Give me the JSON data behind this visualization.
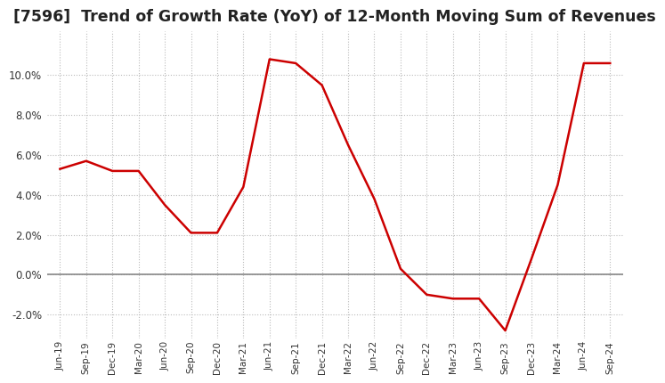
{
  "title": "[7596]  Trend of Growth Rate (YoY) of 12-Month Moving Sum of Revenues",
  "title_fontsize": 12.5,
  "line_color": "#cc0000",
  "background_color": "#ffffff",
  "grid_color": "#bbbbbb",
  "ylim": [
    -3.2,
    12.2
  ],
  "yticks": [
    -2.0,
    0.0,
    2.0,
    4.0,
    6.0,
    8.0,
    10.0
  ],
  "x_labels": [
    "Jun-19",
    "Sep-19",
    "Dec-19",
    "Mar-20",
    "Jun-20",
    "Sep-20",
    "Dec-20",
    "Mar-21",
    "Jun-21",
    "Sep-21",
    "Dec-21",
    "Mar-22",
    "Jun-22",
    "Sep-22",
    "Dec-22",
    "Mar-23",
    "Jun-23",
    "Sep-23",
    "Dec-23",
    "Mar-24",
    "Jun-24",
    "Sep-24"
  ],
  "values": [
    5.3,
    5.7,
    5.2,
    5.2,
    3.5,
    2.1,
    2.1,
    4.4,
    10.8,
    10.6,
    9.5,
    6.5,
    3.8,
    0.3,
    -1.0,
    -1.2,
    -1.2,
    -2.8,
    0.8,
    4.5,
    10.6,
    10.6
  ]
}
